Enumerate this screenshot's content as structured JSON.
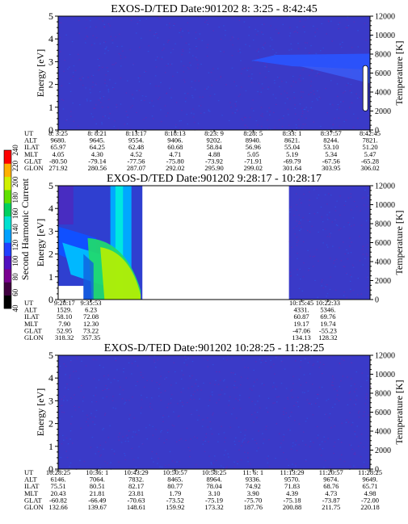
{
  "chart_data": [
    {
      "type": "heatmap",
      "title": "EXOS-D/TED   Date:901202   8: 3:25 - 8:42:45",
      "ylabel": "Energy [eV]",
      "y2label": "Temperature [K]",
      "ylim": [
        0,
        5
      ],
      "y2lim": [
        0,
        12000
      ],
      "yticks": [
        "0",
        "1",
        "2",
        "3",
        "4",
        "5"
      ],
      "y2ticks": [
        "0",
        "2000",
        "4000",
        "6000",
        "8000",
        "10000",
        "12000"
      ],
      "base_color": "#3a3ac8",
      "features": [
        {
          "name": "band",
          "x_from": 0.62,
          "x_to": 1.0,
          "energy_center": 3.05,
          "energy_halfwidth": 0.25,
          "color": "#2a55ff"
        },
        {
          "name": "temperature-bar",
          "x": 0.985,
          "temp_from": 2000,
          "temp_to": 6800,
          "color": "#ffffff"
        }
      ],
      "table": {
        "row_labels": [
          "UT",
          "ALT",
          "ILAT",
          "MLT",
          "GLAT",
          "GLON"
        ],
        "columns": [
          [
            "8: 3:25",
            "9680.",
            "65.97",
            "4.05",
            "-80.50",
            "271.92"
          ],
          [
            "8: 8:21",
            "9645.",
            "64.25",
            "4.30",
            "-79.14",
            "280.56"
          ],
          [
            "8:13:17",
            "9554.",
            "62.48",
            "4.52",
            "-77.56",
            "287.07"
          ],
          [
            "8:18:13",
            "9406.",
            "60.68",
            "4.71",
            "-75.80",
            "292.02"
          ],
          [
            "8:23: 9",
            "9202.",
            "58.84",
            "4.88",
            "-73.92",
            "295.90"
          ],
          [
            "8:28: 5",
            "8940.",
            "56.96",
            "5.05",
            "-71.91",
            "299.02"
          ],
          [
            "8:33: 1",
            "8621.",
            "55.04",
            "5.19",
            "-69.79",
            "301.64"
          ],
          [
            "8:37:57",
            "8244.",
            "53.10",
            "5.34",
            "-67.56",
            "303.95"
          ],
          [
            "8:42:45",
            "7821.",
            "51.20",
            "5.47",
            "-65.28",
            "306.02"
          ]
        ]
      }
    },
    {
      "type": "heatmap",
      "title": "EXOS-D/TED   Date:901202   9:28:17 - 10:28:17",
      "ylabel": "Energy [eV]",
      "y2label": "Temperature [K]",
      "ylim": [
        0,
        5
      ],
      "y2lim": [
        0,
        12000
      ],
      "yticks": [
        "0",
        "1",
        "2",
        "3",
        "4",
        "5"
      ],
      "y2ticks": [
        "0",
        "2000",
        "4000",
        "6000",
        "8000",
        "10000",
        "12000"
      ],
      "colorbar": {
        "label": "Second Harmonic Current",
        "ticks": [
          "40",
          "60",
          "80",
          "100",
          "120",
          "140",
          "160",
          "180",
          "200",
          "220",
          "240"
        ],
        "colors": [
          "#000000",
          "#400040",
          "#7a0090",
          "#5010c0",
          "#2040ff",
          "#00a0ff",
          "#00e0d0",
          "#00d060",
          "#60e000",
          "#d0f000",
          "#ffb000",
          "#ff0000"
        ]
      },
      "features": [
        {
          "name": "data-left",
          "x_from": 0.0,
          "x_to": 0.27,
          "color": "#2f3fd0"
        },
        {
          "name": "gap",
          "x_from": 0.27,
          "x_to": 0.74,
          "color": "#ffffff"
        },
        {
          "name": "data-right",
          "x_from": 0.74,
          "x_to": 1.0,
          "color": "#3a3ac8"
        }
      ],
      "table": {
        "row_labels": [
          "UT",
          "ALT",
          "ILAT",
          "MLT",
          "GLAT",
          "GLON"
        ],
        "columns": [
          [
            "9:28:17",
            "1529.",
            "58.10",
            "7.90",
            "52.95",
            "318.32"
          ],
          [
            "9:35:53",
            "6.23",
            "72.08",
            "12.30",
            "73.22",
            "357.35"
          ],
          [
            "10:15:45",
            "4331.",
            "60.87",
            "19.17",
            "-47.06",
            "134.13"
          ],
          [
            "10:22:33",
            "5346.",
            "69.76",
            "19.74",
            "-55.23",
            "128.32"
          ]
        ]
      }
    },
    {
      "type": "heatmap",
      "title": "EXOS-D/TED   Date:901202   10:28:25 - 11:28:25",
      "ylabel": "Energy [eV]",
      "y2label": "Temperature [K]",
      "ylim": [
        0,
        5
      ],
      "y2lim": [
        0,
        12000
      ],
      "yticks": [
        "0",
        "1",
        "2",
        "3",
        "4",
        "5"
      ],
      "y2ticks": [
        "0",
        "2000",
        "4000",
        "6000",
        "8000",
        "10000",
        "12000"
      ],
      "base_color": "#3a3ac8",
      "table": {
        "row_labels": [
          "UT",
          "ALT",
          "ILAT",
          "MLT",
          "GLAT",
          "GLON"
        ],
        "columns": [
          [
            "10:28:25",
            "6146.",
            "75.51",
            "20.43",
            "-60.82",
            "132.66"
          ],
          [
            "10:36: 1",
            "7064.",
            "80.51",
            "21.81",
            "-66.49",
            "139.67"
          ],
          [
            "10:43:29",
            "7832.",
            "82.17",
            "23.81",
            "-70.63",
            "148.61"
          ],
          [
            "10:50:57",
            "8465.",
            "80.77",
            "1.79",
            "-73.52",
            "159.92"
          ],
          [
            "10:58:25",
            "8964.",
            "78.04",
            "3.10",
            "-75.19",
            "173.32"
          ],
          [
            "11: 6: 1",
            "9336.",
            "74.92",
            "3.90",
            "-75.70",
            "187.76"
          ],
          [
            "11:13:29",
            "9570.",
            "71.83",
            "4.39",
            "-75.18",
            "200.88"
          ],
          [
            "11:20:57",
            "9674.",
            "68.76",
            "4.73",
            "-73.87",
            "211.75"
          ],
          [
            "11:28:25",
            "9649.",
            "65.71",
            "4.98",
            "-72.00",
            "220.18"
          ]
        ]
      }
    }
  ]
}
